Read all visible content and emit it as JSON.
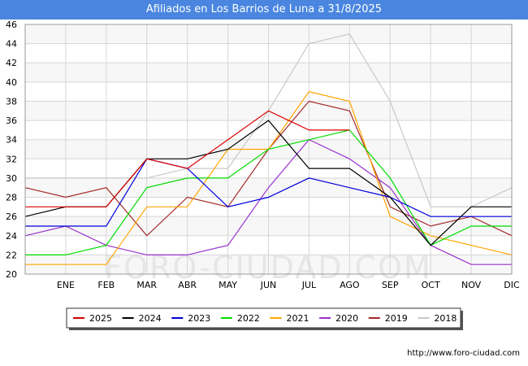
{
  "header": {
    "title": "Afiliados en Los Barrios de Luna a 31/8/2025"
  },
  "footer": {
    "url": "http://www.foro-ciudad.com"
  },
  "watermark": "FORO-CIUDAD.COM",
  "chart_data": {
    "type": "line",
    "title": "Afiliados en Los Barrios de Luna a 31/8/2025",
    "categories": [
      "",
      "ENE",
      "FEB",
      "MAR",
      "ABR",
      "MAY",
      "JUN",
      "JUL",
      "AGO",
      "SEP",
      "OCT",
      "NOV",
      "DIC"
    ],
    "ylim": [
      20,
      46
    ],
    "yticks": [
      20,
      22,
      24,
      26,
      28,
      30,
      32,
      34,
      36,
      38,
      40,
      42,
      44,
      46
    ],
    "grid": true,
    "legend_position": "bottom",
    "series": [
      {
        "name": "2025",
        "color": "#dd0000",
        "values": [
          27,
          27,
          27,
          32,
          31,
          34,
          37,
          35,
          35,
          null,
          null,
          null,
          null
        ]
      },
      {
        "name": "2024",
        "color": "#000000",
        "values": [
          26,
          27,
          27,
          32,
          32,
          33,
          36,
          31,
          31,
          28,
          23,
          27,
          27
        ]
      },
      {
        "name": "2023",
        "color": "#0000dd",
        "values": [
          25,
          25,
          25,
          32,
          31,
          27,
          28,
          30,
          29,
          28,
          26,
          26,
          26
        ]
      },
      {
        "name": "2022",
        "color": "#00dd00",
        "values": [
          22,
          22,
          23,
          29,
          30,
          30,
          33,
          34,
          35,
          30,
          23,
          25,
          25
        ]
      },
      {
        "name": "2021",
        "color": "#ffa500",
        "values": [
          21,
          21,
          21,
          27,
          27,
          33,
          33,
          39,
          38,
          26,
          24,
          23,
          22
        ]
      },
      {
        "name": "2020",
        "color": "#9a32cd",
        "values": [
          24,
          25,
          23,
          22,
          22,
          23,
          29,
          34,
          32,
          29,
          23,
          21,
          21
        ]
      },
      {
        "name": "2019",
        "color": "#a52a2a",
        "values": [
          29,
          28,
          29,
          24,
          28,
          27,
          33,
          38,
          37,
          27,
          25,
          26,
          24
        ]
      },
      {
        "name": "2018",
        "color": "#c8c8c8",
        "values": [
          30,
          30,
          30,
          30,
          31,
          31,
          37,
          44,
          45,
          38,
          27,
          27,
          29
        ]
      }
    ]
  }
}
